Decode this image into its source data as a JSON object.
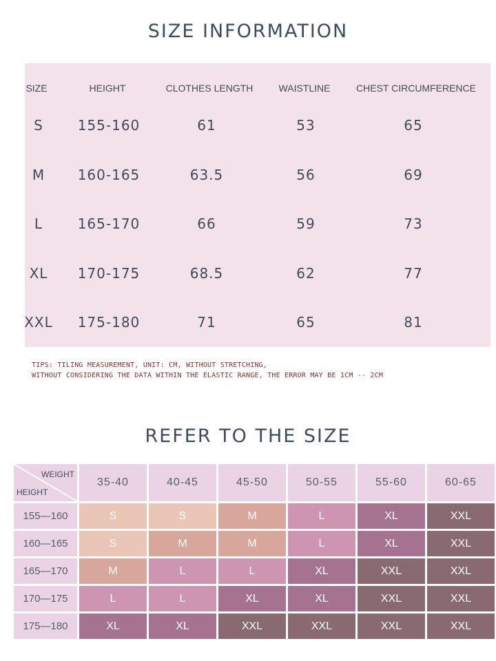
{
  "size_info": {
    "title": "SIZE INFORMATION",
    "headers": [
      "SIZE",
      "HEIGHT",
      "CLOTHES LENGTH",
      "WAISTLINE",
      "CHEST CIRCUMFERENCE"
    ],
    "rows": [
      [
        "S",
        "155-160",
        "61",
        "53",
        "65"
      ],
      [
        "M",
        "160-165",
        "63.5",
        "56",
        "69"
      ],
      [
        "L",
        "165-170",
        "66",
        "59",
        "73"
      ],
      [
        "XL",
        "170-175",
        "68.5",
        "62",
        "77"
      ],
      [
        "XXL",
        "175-180",
        "71",
        "65",
        "81"
      ]
    ],
    "tips": [
      "TIPS: TILING MEASUREMENT, UNIT: CM, WITHOUT STRETCHING,",
      "WITHOUT CONSIDERING THE DATA WITHIN THE ELASTIC RANGE, THE ERROR MAY BE 1CM -- 2CM"
    ]
  },
  "refer": {
    "title": "REFER TO THE SIZE",
    "corner_weight": "WEIGHT",
    "corner_height": "HEIGHT",
    "weights": [
      "35-40",
      "40-45",
      "45-50",
      "50-55",
      "55-60",
      "60-65"
    ],
    "heights": [
      "155—160",
      "160—165",
      "165—170",
      "170—175",
      "175—180"
    ],
    "sizes": [
      [
        "S",
        "S",
        "M",
        "L",
        "XL",
        "XXL"
      ],
      [
        "S",
        "M",
        "M",
        "L",
        "XL",
        "XXL"
      ],
      [
        "M",
        "L",
        "L",
        "XL",
        "XXL",
        "XXL"
      ],
      [
        "L",
        "L",
        "XL",
        "XL",
        "XXL",
        "XXL"
      ],
      [
        "XL",
        "XL",
        "XXL",
        "XXL",
        "XXL",
        "XXL"
      ]
    ],
    "size_colors": {
      "S": "#e9c6b6",
      "M": "#d8a79b",
      "L": "#cd95b0",
      "XL": "#a57390",
      "XXL": "#886a70"
    }
  }
}
